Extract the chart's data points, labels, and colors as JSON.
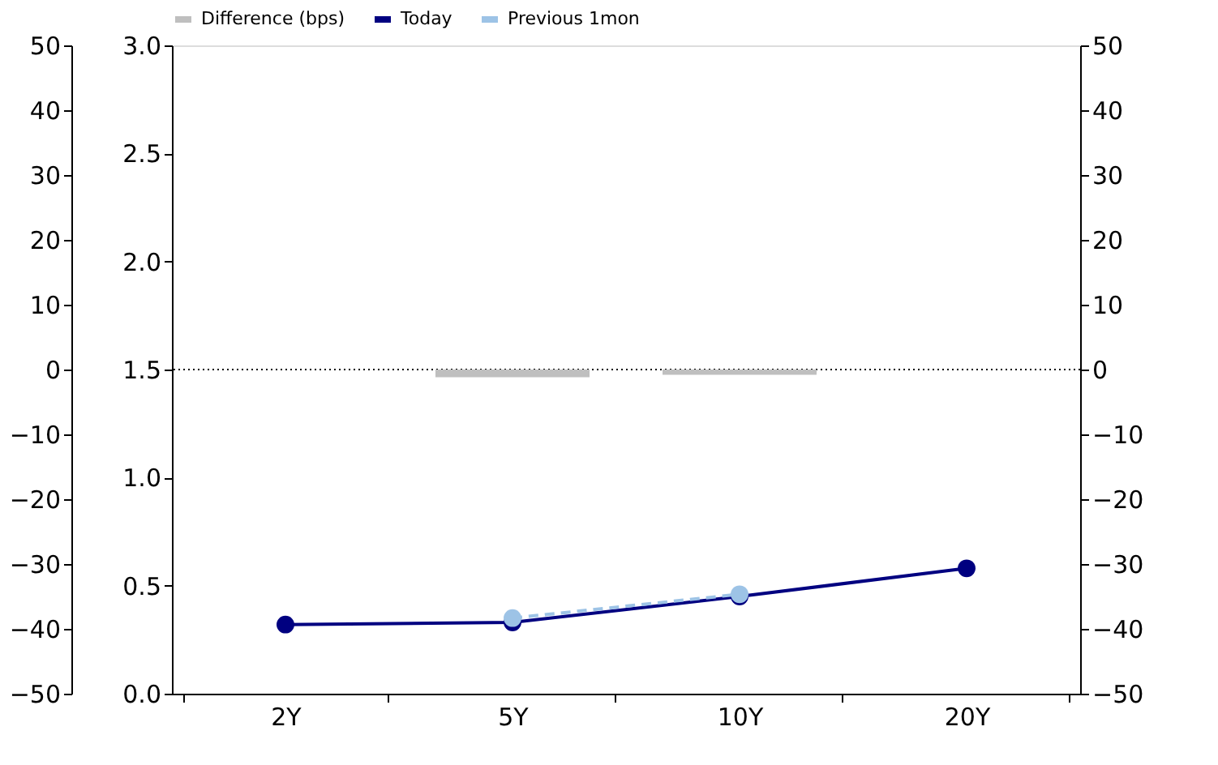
{
  "chart_data": {
    "type": "line",
    "categories": [
      "2Y",
      "5Y",
      "10Y",
      "20Y"
    ],
    "series": [
      {
        "name": "Difference (bps)",
        "type": "bar",
        "axis": "y2",
        "color": "#bfbfbf",
        "values": [
          null,
          -1.2,
          -0.8,
          null
        ]
      },
      {
        "name": "Today",
        "color": "#000080",
        "marker": "circle",
        "line_style": "solid",
        "values": [
          0.32,
          0.33,
          0.45,
          0.58
        ]
      },
      {
        "name": "Previous 1mon",
        "color": "#9dc3e6",
        "marker": "circle",
        "line_style": "dashed",
        "values": [
          null,
          0.35,
          0.46,
          null
        ]
      }
    ],
    "ylim": [
      0.0,
      3.0
    ],
    "yticks": [
      {
        "value": 0,
        "label": "0.0"
      },
      0.5,
      {
        "value": 1,
        "label": "1.0"
      },
      1.5,
      {
        "value": 2,
        "label": "2.0"
      },
      2.5,
      {
        "value": 3,
        "label": "3.0"
      }
    ],
    "y2lim": [
      -50,
      50
    ],
    "y2ticks": [
      -50,
      -40,
      -30,
      -20,
      -10,
      0,
      10,
      20,
      30,
      40,
      50
    ],
    "y3lim": [
      -50,
      50
    ],
    "y3ticks": [
      -50,
      -40,
      -30,
      -20,
      -10,
      0,
      10,
      20,
      30,
      40,
      50
    ],
    "ref_lines": [
      {
        "axis": "y2",
        "value": 0,
        "color": "#000000",
        "line_style": "dotted"
      }
    ],
    "legend": "top",
    "grid": false
  }
}
